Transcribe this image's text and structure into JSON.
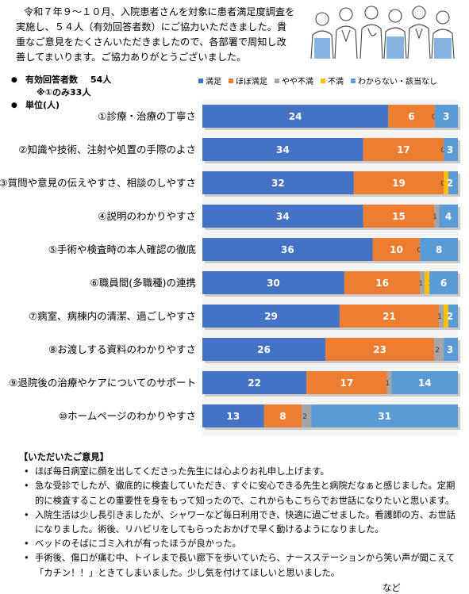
{
  "intro": "令和７年９～１０月、入院患者さんを対象に患者満足度調査を実施し、５４人（有効回答者数）にご協力いただきました。貴重なご意見をたくさんいただきましたので、各部署で周知し改善してまいります。ご協力ありがとうございました。",
  "summary": {
    "respondents_label": "有効回答者数",
    "respondents_value": "54人",
    "note": "※①のみ33人",
    "unit": "単位(人)"
  },
  "colors": {
    "satisfied": "#4472c4",
    "mostly_satisfied": "#ed7d31",
    "somewhat_dissatisfied": "#a5a5a5",
    "dissatisfied": "#ffc000",
    "unknown": "#5b9bd5"
  },
  "chart_data": {
    "type": "bar",
    "orientation": "horizontal",
    "stacked": true,
    "categories": [
      "①診療・治療の丁寧さ",
      "②知識や技術、注射や処置の手際のよさ",
      "③質問や意見の伝えやすさ、相談のしやすさ",
      "④説明のわかりやすさ",
      "⑤手術や検査時の本人確認の徹底",
      "⑥職員間(多職種)の連携",
      "⑦病室、病棟内の清潔、過ごしやすさ",
      "⑧お渡しする資料のわかりやすさ",
      "⑨退院後の治療やケアについてのサポート",
      "⑩ホームページのわかりやすさ"
    ],
    "series": [
      {
        "name": "満足",
        "values": [
          24,
          34,
          32,
          34,
          36,
          30,
          29,
          26,
          22,
          13
        ]
      },
      {
        "name": "ほぼ満足",
        "values": [
          6,
          17,
          19,
          15,
          10,
          16,
          21,
          23,
          17,
          8
        ]
      },
      {
        "name": "やや不満",
        "values": [
          0,
          0,
          0,
          1,
          0,
          1,
          1,
          2,
          1,
          2
        ]
      },
      {
        "name": "不満",
        "values": [
          0,
          0,
          1,
          0,
          0,
          1,
          1,
          0,
          0,
          0
        ]
      },
      {
        "name": "わからない・該当なし",
        "values": [
          3,
          3,
          2,
          4,
          8,
          6,
          2,
          3,
          14,
          31
        ]
      }
    ],
    "legend_position": "top",
    "grid": false
  },
  "comments": {
    "title": "【いただいたご意見】",
    "items": [
      "ほぼ毎日病室に顔を出してくださった先生には心よりお礼申し上げます。",
      "急な受診でしたが、徹底的に検査していただき、すぐに安心できる先生と病院だなぁと感じました。定期的に検査することの重要性を身をもって知ったので、これからもこちらでお世話になりたいと思います。",
      "入院生活は少し長引きましたが、シャワーなど毎日利用でき、快適に過ごせました。看護師の方、お世話になりました。術後、リハビリをしてもらったおかげで早く動けるようになりました。",
      "ベッドのそばにゴミ入れが有ったほうが良かった。",
      "手術後、傷口が痛む中、トイレまで長い廊下を歩いていたら、ナースステーションから笑い声が聞こえて「カチン！！」ときてしまいました。少し気を付けてほしいと思いました。"
    ],
    "etc": "など"
  }
}
